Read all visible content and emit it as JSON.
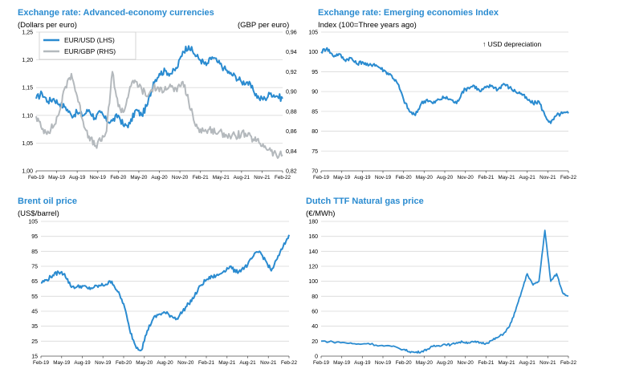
{
  "colors": {
    "blue": "#2a8bd0",
    "grey": "#b4b9bd"
  },
  "x_ticks": [
    "Feb-19",
    "May-19",
    "Aug-19",
    "Nov-19",
    "Feb-20",
    "May-20",
    "Aug-20",
    "Nov-20",
    "Feb-21",
    "May-21",
    "Aug-21",
    "Nov-21",
    "Feb-22"
  ],
  "chart_data": [
    {
      "type": "line",
      "title": "Exchange rate: Advanced-economy currencies",
      "ylabel": "(Dollars per euro)",
      "y2label": "(GBP per euro)",
      "ylim": [
        1.0,
        1.25
      ],
      "y_ticks": [
        "1,00",
        "1,05",
        "1,10",
        "1,15",
        "1,20",
        "1,25"
      ],
      "y2lim": [
        0.82,
        0.96
      ],
      "y2_ticks": [
        "0,82",
        "0,84",
        "0,86",
        "0,88",
        "0,90",
        "0,92",
        "0,94",
        "0,96"
      ],
      "legend_position": "top-left",
      "series": [
        {
          "name": "EUR/USD (LHS)",
          "axis": "left",
          "color": "#2a8bd0",
          "points": [
            [
              0,
              1.13
            ],
            [
              2,
              1.14
            ],
            [
              4,
              1.125
            ],
            [
              6,
              1.13
            ],
            [
              8,
              1.12
            ],
            [
              10,
              1.115
            ],
            [
              12,
              1.1
            ],
            [
              14,
              1.105
            ],
            [
              16,
              1.1
            ],
            [
              18,
              1.11
            ],
            [
              20,
              1.095
            ],
            [
              22,
              1.105
            ],
            [
              24,
              1.09
            ],
            [
              26,
              1.09
            ],
            [
              28,
              1.1
            ],
            [
              30,
              1.08
            ],
            [
              32,
              1.085
            ],
            [
              34,
              1.11
            ],
            [
              36,
              1.1
            ],
            [
              38,
              1.12
            ],
            [
              40,
              1.16
            ],
            [
              42,
              1.175
            ],
            [
              44,
              1.18
            ],
            [
              46,
              1.175
            ],
            [
              48,
              1.185
            ],
            [
              50,
              1.215
            ],
            [
              52,
              1.225
            ],
            [
              54,
              1.21
            ],
            [
              56,
              1.2
            ],
            [
              58,
              1.19
            ],
            [
              60,
              1.205
            ],
            [
              62,
              1.195
            ],
            [
              64,
              1.185
            ],
            [
              66,
              1.175
            ],
            [
              68,
              1.17
            ],
            [
              70,
              1.16
            ],
            [
              72,
              1.16
            ],
            [
              74,
              1.145
            ],
            [
              76,
              1.13
            ],
            [
              78,
              1.13
            ],
            [
              80,
              1.14
            ],
            [
              82,
              1.135
            ],
            [
              84,
              1.13
            ]
          ]
        },
        {
          "name": "EUR/GBP (RHS)",
          "axis": "right",
          "color": "#b4b9bd",
          "points": [
            [
              0,
              0.875
            ],
            [
              2,
              0.862
            ],
            [
              4,
              0.86
            ],
            [
              6,
              0.865
            ],
            [
              8,
              0.88
            ],
            [
              10,
              0.905
            ],
            [
              12,
              0.918
            ],
            [
              14,
              0.895
            ],
            [
              16,
              0.87
            ],
            [
              18,
              0.855
            ],
            [
              20,
              0.845
            ],
            [
              22,
              0.85
            ],
            [
              24,
              0.86
            ],
            [
              26,
              0.92
            ],
            [
              28,
              0.885
            ],
            [
              30,
              0.88
            ],
            [
              32,
              0.905
            ],
            [
              34,
              0.91
            ],
            [
              36,
              0.902
            ],
            [
              38,
              0.895
            ],
            [
              40,
              0.905
            ],
            [
              42,
              0.9
            ],
            [
              44,
              0.905
            ],
            [
              46,
              0.905
            ],
            [
              48,
              0.9
            ],
            [
              50,
              0.91
            ],
            [
              52,
              0.89
            ],
            [
              54,
              0.868
            ],
            [
              56,
              0.862
            ],
            [
              58,
              0.86
            ],
            [
              60,
              0.862
            ],
            [
              62,
              0.858
            ],
            [
              64,
              0.858
            ],
            [
              66,
              0.855
            ],
            [
              68,
              0.855
            ],
            [
              70,
              0.858
            ],
            [
              72,
              0.855
            ],
            [
              74,
              0.852
            ],
            [
              76,
              0.848
            ],
            [
              78,
              0.845
            ],
            [
              80,
              0.84
            ],
            [
              82,
              0.835
            ],
            [
              84,
              0.836
            ]
          ]
        }
      ]
    },
    {
      "type": "line",
      "title": "Exchange rate: Emerging economies Index",
      "ylabel": "Index (100=Three years ago)",
      "annotation": "↑ USD depreciation",
      "ylim": [
        70,
        105
      ],
      "y_ticks": [
        "70",
        "75",
        "80",
        "85",
        "90",
        "95",
        "100",
        "105"
      ],
      "series": [
        {
          "name": "",
          "color": "#2a8bd0",
          "points": [
            [
              0,
              100
            ],
            [
              2,
              101
            ],
            [
              4,
              99
            ],
            [
              6,
              99.5
            ],
            [
              8,
              98
            ],
            [
              10,
              98.5
            ],
            [
              12,
              97
            ],
            [
              14,
              97.5
            ],
            [
              16,
              96.5
            ],
            [
              18,
              97
            ],
            [
              20,
              96
            ],
            [
              22,
              95
            ],
            [
              24,
              94
            ],
            [
              26,
              92
            ],
            [
              28,
              88
            ],
            [
              30,
              85
            ],
            [
              32,
              84
            ],
            [
              34,
              87
            ],
            [
              36,
              88
            ],
            [
              38,
              87
            ],
            [
              40,
              88
            ],
            [
              42,
              88.5
            ],
            [
              44,
              88
            ],
            [
              46,
              87
            ],
            [
              48,
              90
            ],
            [
              50,
              91
            ],
            [
              52,
              91.5
            ],
            [
              54,
              90
            ],
            [
              56,
              91
            ],
            [
              58,
              91.5
            ],
            [
              60,
              90.5
            ],
            [
              62,
              92
            ],
            [
              64,
              91
            ],
            [
              66,
              90
            ],
            [
              68,
              89.5
            ],
            [
              70,
              88
            ],
            [
              72,
              87
            ],
            [
              74,
              87.5
            ],
            [
              76,
              84
            ],
            [
              78,
              82
            ],
            [
              80,
              84
            ],
            [
              82,
              84.5
            ],
            [
              84,
              84.5
            ]
          ]
        }
      ]
    },
    {
      "type": "line",
      "title": "Brent oil price",
      "ylabel": "(US$/barrel)",
      "ylim": [
        15,
        105
      ],
      "y_ticks": [
        "15",
        "25",
        "35",
        "45",
        "55",
        "65",
        "75",
        "85",
        "95",
        "105"
      ],
      "series": [
        {
          "name": "",
          "color": "#2a8bd0",
          "points": [
            [
              0,
              64
            ],
            [
              2,
              66
            ],
            [
              4,
              69
            ],
            [
              6,
              71
            ],
            [
              8,
              70
            ],
            [
              10,
              62
            ],
            [
              12,
              61
            ],
            [
              14,
              62
            ],
            [
              16,
              60
            ],
            [
              18,
              61
            ],
            [
              20,
              62
            ],
            [
              22,
              63
            ],
            [
              24,
              65
            ],
            [
              26,
              58
            ],
            [
              28,
              50
            ],
            [
              30,
              33
            ],
            [
              32,
              22
            ],
            [
              34,
              19
            ],
            [
              36,
              32
            ],
            [
              38,
              40
            ],
            [
              40,
              43
            ],
            [
              42,
              44
            ],
            [
              44,
              42
            ],
            [
              46,
              40
            ],
            [
              48,
              45
            ],
            [
              50,
              50
            ],
            [
              52,
              55
            ],
            [
              54,
              62
            ],
            [
              56,
              66
            ],
            [
              58,
              68
            ],
            [
              60,
              69
            ],
            [
              62,
              72
            ],
            [
              64,
              75
            ],
            [
              66,
              71
            ],
            [
              68,
              73
            ],
            [
              70,
              76
            ],
            [
              72,
              82
            ],
            [
              74,
              85
            ],
            [
              76,
              79
            ],
            [
              78,
              72
            ],
            [
              80,
              80
            ],
            [
              82,
              88
            ],
            [
              84,
              96
            ]
          ]
        }
      ]
    },
    {
      "type": "line",
      "title": "Dutch TTF Natural gas price",
      "ylabel": "(€/MWh)",
      "ylim": [
        0,
        180
      ],
      "y_ticks": [
        "0",
        "20",
        "40",
        "60",
        "80",
        "100",
        "120",
        "140",
        "160",
        "180"
      ],
      "series": [
        {
          "name": "",
          "color": "#2a8bd0",
          "points": [
            [
              0,
              20
            ],
            [
              4,
              19
            ],
            [
              8,
              18
            ],
            [
              12,
              16
            ],
            [
              16,
              17
            ],
            [
              20,
              14
            ],
            [
              24,
              13
            ],
            [
              28,
              9
            ],
            [
              30,
              6
            ],
            [
              32,
              5
            ],
            [
              34,
              6
            ],
            [
              36,
              9
            ],
            [
              38,
              13
            ],
            [
              40,
              14
            ],
            [
              42,
              16
            ],
            [
              44,
              15
            ],
            [
              46,
              18
            ],
            [
              48,
              19
            ],
            [
              50,
              18
            ],
            [
              52,
              19
            ],
            [
              54,
              18
            ],
            [
              56,
              17
            ],
            [
              58,
              21
            ],
            [
              60,
              25
            ],
            [
              62,
              30
            ],
            [
              64,
              40
            ],
            [
              66,
              60
            ],
            [
              68,
              85
            ],
            [
              70,
              110
            ],
            [
              72,
              95
            ],
            [
              74,
              100
            ],
            [
              76,
              168
            ],
            [
              78,
              100
            ],
            [
              80,
              110
            ],
            [
              82,
              85
            ],
            [
              84,
              80
            ]
          ]
        }
      ]
    }
  ]
}
